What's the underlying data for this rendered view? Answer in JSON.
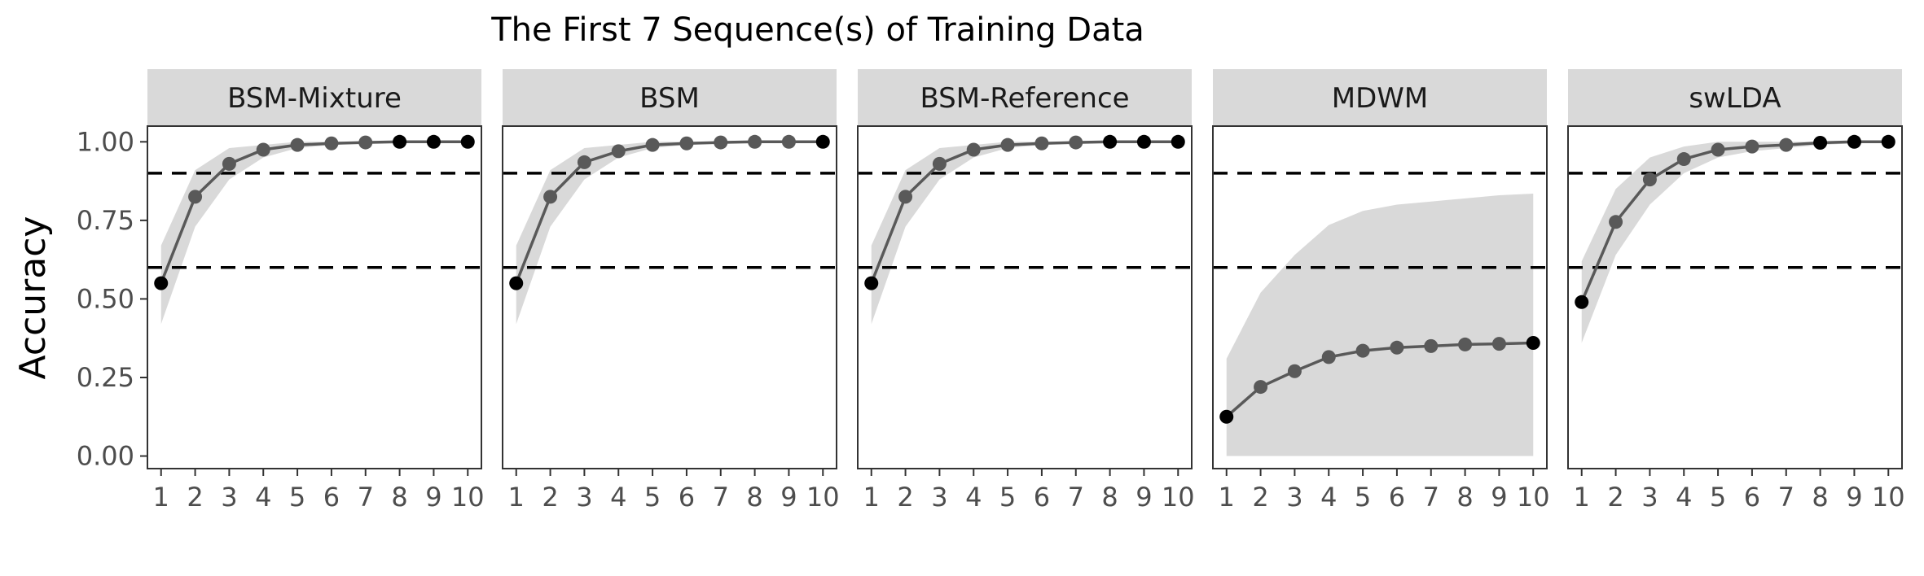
{
  "chart_data": {
    "type": "line",
    "title": "The First 7 Sequence(s) of Training Data",
    "ylabel": "Accuracy",
    "xlabel": "",
    "x": [
      1,
      2,
      3,
      4,
      5,
      6,
      7,
      8,
      9,
      10
    ],
    "x_tick_labels": [
      "1",
      "2",
      "3",
      "4",
      "5",
      "6",
      "7",
      "8",
      "9",
      "10"
    ],
    "y_ticks": [
      0.0,
      0.25,
      0.5,
      0.75,
      1.0
    ],
    "y_tick_labels": [
      "0.00",
      "0.25",
      "0.50",
      "0.75",
      "1.00"
    ],
    "ylim": [
      -0.04,
      1.05
    ],
    "xlim": [
      0.6,
      10.4
    ],
    "reference_lines": [
      0.9,
      0.6
    ],
    "line_color": "#595959",
    "band_color": "#d9d9d9",
    "strip_color": "#d9d9d9",
    "panels": [
      {
        "name": "BSM-Mixture",
        "values": [
          0.55,
          0.825,
          0.93,
          0.975,
          0.99,
          0.995,
          0.998,
          1.0,
          1.0,
          1.0
        ],
        "lower": [
          0.42,
          0.73,
          0.88,
          0.95,
          0.98,
          0.99,
          0.995,
          0.999,
          1.0,
          1.0
        ],
        "upper": [
          0.67,
          0.91,
          0.98,
          0.99,
          1.0,
          1.0,
          1.0,
          1.0,
          1.0,
          1.0
        ],
        "point_colors": [
          "#000000",
          "#595959",
          "#595959",
          "#595959",
          "#595959",
          "#595959",
          "#595959",
          "#000000",
          "#000000",
          "#000000"
        ]
      },
      {
        "name": "BSM",
        "values": [
          0.55,
          0.825,
          0.935,
          0.97,
          0.99,
          0.995,
          0.998,
          1.0,
          1.0,
          1.0
        ],
        "lower": [
          0.42,
          0.73,
          0.88,
          0.95,
          0.98,
          0.99,
          0.995,
          0.999,
          1.0,
          1.0
        ],
        "upper": [
          0.67,
          0.91,
          0.98,
          0.99,
          1.0,
          1.0,
          1.0,
          1.0,
          1.0,
          1.0
        ],
        "point_colors": [
          "#000000",
          "#595959",
          "#595959",
          "#595959",
          "#595959",
          "#595959",
          "#595959",
          "#595959",
          "#595959",
          "#000000"
        ]
      },
      {
        "name": "BSM-Reference",
        "values": [
          0.55,
          0.825,
          0.93,
          0.975,
          0.99,
          0.995,
          0.998,
          1.0,
          1.0,
          1.0
        ],
        "lower": [
          0.42,
          0.73,
          0.88,
          0.95,
          0.98,
          0.99,
          0.995,
          0.999,
          1.0,
          1.0
        ],
        "upper": [
          0.67,
          0.91,
          0.98,
          0.99,
          1.0,
          1.0,
          1.0,
          1.0,
          1.0,
          1.0
        ],
        "point_colors": [
          "#000000",
          "#595959",
          "#595959",
          "#595959",
          "#595959",
          "#595959",
          "#595959",
          "#000000",
          "#000000",
          "#000000"
        ]
      },
      {
        "name": "MDWM",
        "values": [
          0.125,
          0.22,
          0.27,
          0.315,
          0.335,
          0.345,
          0.35,
          0.355,
          0.357,
          0.36
        ],
        "lower": [
          0.0,
          0.0,
          0.0,
          0.0,
          0.0,
          0.0,
          0.0,
          0.0,
          0.0,
          0.0
        ],
        "upper": [
          0.31,
          0.52,
          0.64,
          0.735,
          0.78,
          0.8,
          0.81,
          0.82,
          0.83,
          0.835
        ],
        "point_colors": [
          "#000000",
          "#595959",
          "#595959",
          "#595959",
          "#595959",
          "#595959",
          "#595959",
          "#595959",
          "#595959",
          "#000000"
        ]
      },
      {
        "name": "swLDA",
        "values": [
          0.49,
          0.745,
          0.88,
          0.945,
          0.975,
          0.985,
          0.99,
          0.997,
          1.0,
          1.0
        ],
        "lower": [
          0.36,
          0.64,
          0.8,
          0.9,
          0.95,
          0.97,
          0.98,
          0.99,
          0.995,
          0.998
        ],
        "upper": [
          0.62,
          0.85,
          0.95,
          0.985,
          1.0,
          1.0,
          1.0,
          1.0,
          1.0,
          1.0
        ],
        "point_colors": [
          "#000000",
          "#595959",
          "#595959",
          "#595959",
          "#595959",
          "#595959",
          "#595959",
          "#000000",
          "#000000",
          "#000000"
        ]
      }
    ]
  }
}
